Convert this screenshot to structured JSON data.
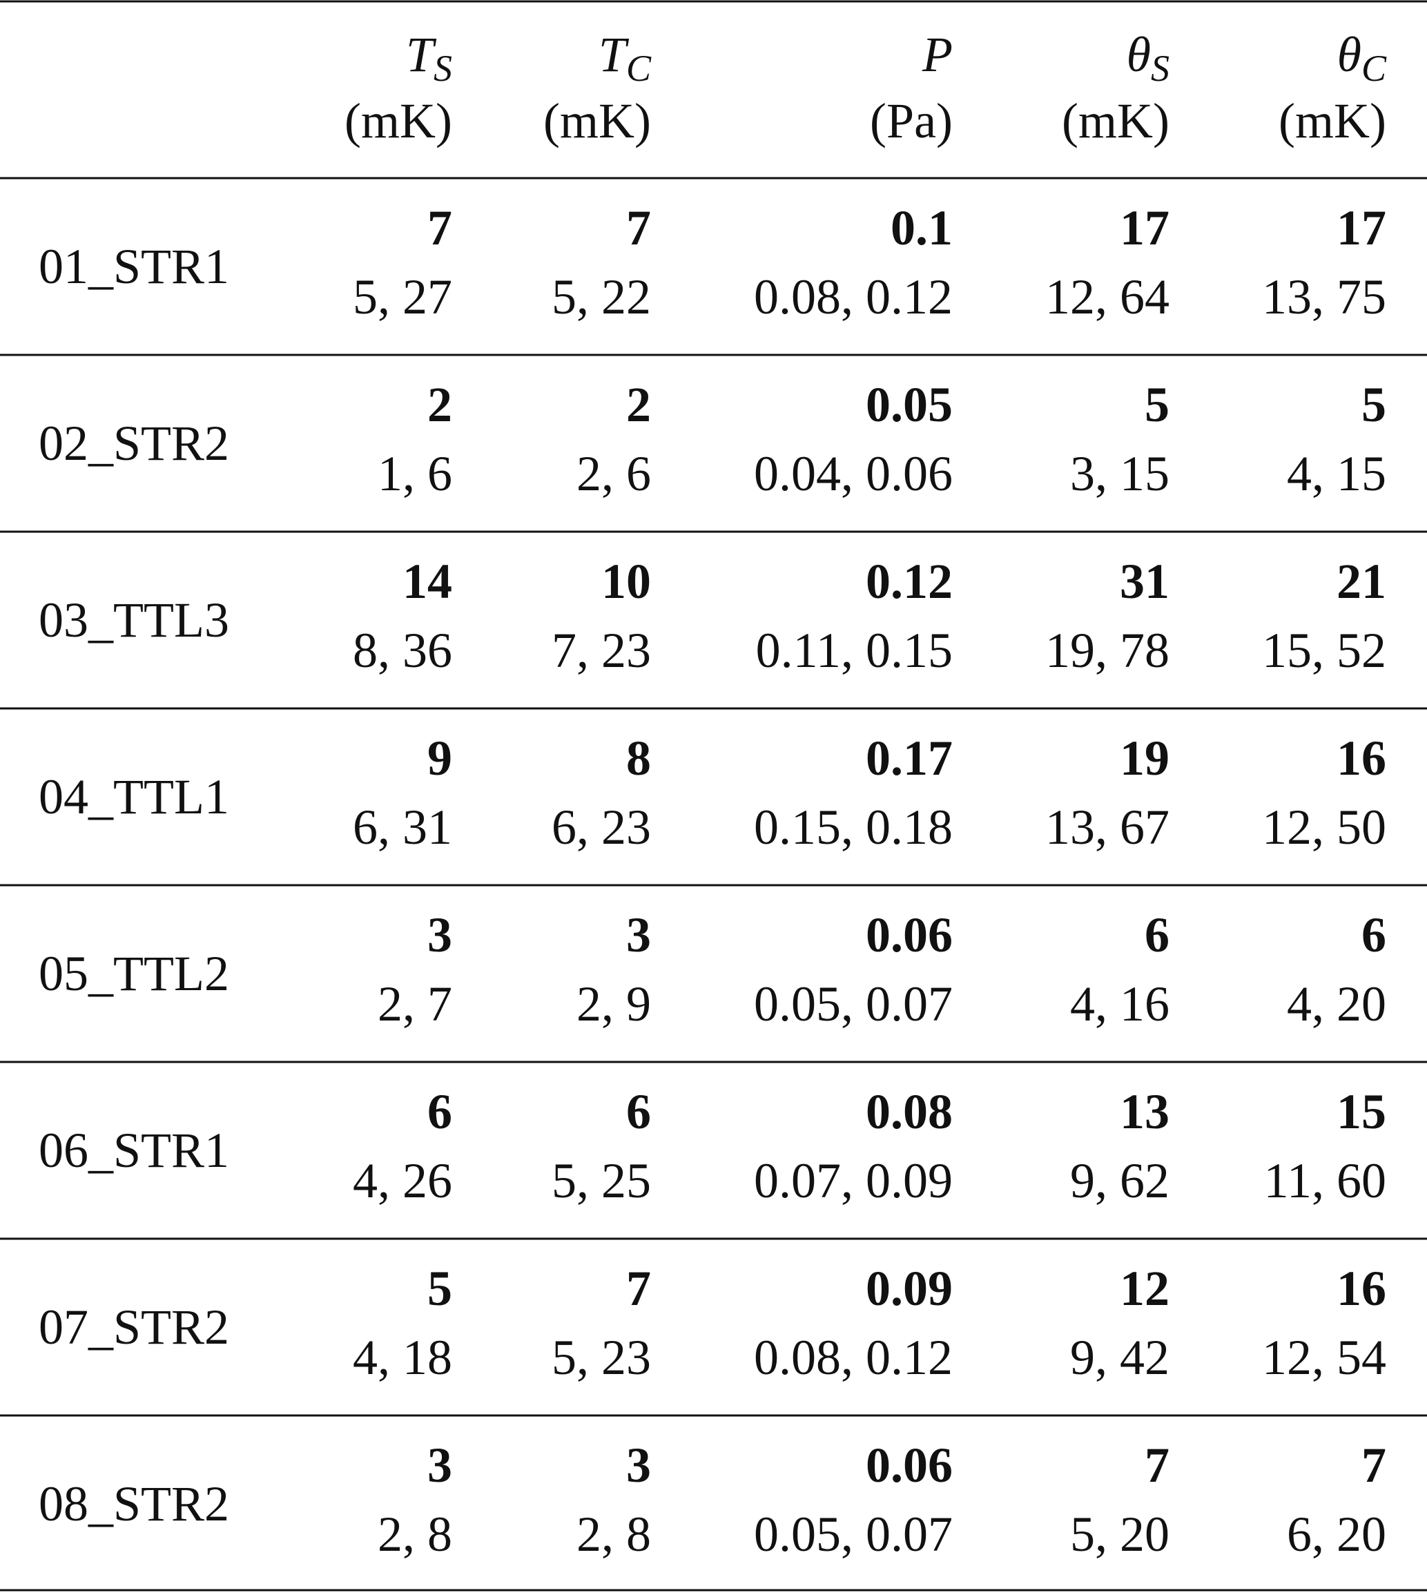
{
  "table": {
    "columns": [
      {
        "symbol": "T",
        "subscript": "S",
        "unit": "(mK)"
      },
      {
        "symbol": "T",
        "subscript": "C",
        "unit": "(mK)"
      },
      {
        "symbol": "P",
        "unit": "(Pa)"
      },
      {
        "symbol": "θ",
        "subscript": "S",
        "unit": "(mK)"
      },
      {
        "symbol": "θ",
        "subscript": "C",
        "unit": "(mK)"
      }
    ],
    "rows": [
      {
        "label": "01_STR1",
        "cells": [
          {
            "value": "7",
            "interval": "5, 27"
          },
          {
            "value": "7",
            "interval": "5, 22"
          },
          {
            "value": "0.1",
            "interval": "0.08, 0.12"
          },
          {
            "value": "17",
            "interval": "12, 64"
          },
          {
            "value": "17",
            "interval": "13, 75"
          }
        ]
      },
      {
        "label": "02_STR2",
        "cells": [
          {
            "value": "2",
            "interval": "1, 6"
          },
          {
            "value": "2",
            "interval": "2, 6"
          },
          {
            "value": "0.05",
            "interval": "0.04, 0.06"
          },
          {
            "value": "5",
            "interval": "3, 15"
          },
          {
            "value": "5",
            "interval": "4, 15"
          }
        ]
      },
      {
        "label": "03_TTL3",
        "cells": [
          {
            "value": "14",
            "interval": "8, 36"
          },
          {
            "value": "10",
            "interval": "7, 23"
          },
          {
            "value": "0.12",
            "interval": "0.11, 0.15"
          },
          {
            "value": "31",
            "interval": "19, 78"
          },
          {
            "value": "21",
            "interval": "15, 52"
          }
        ]
      },
      {
        "label": "04_TTL1",
        "cells": [
          {
            "value": "9",
            "interval": "6, 31"
          },
          {
            "value": "8",
            "interval": "6, 23"
          },
          {
            "value": "0.17",
            "interval": "0.15, 0.18"
          },
          {
            "value": "19",
            "interval": "13, 67"
          },
          {
            "value": "16",
            "interval": "12, 50"
          }
        ]
      },
      {
        "label": "05_TTL2",
        "cells": [
          {
            "value": "3",
            "interval": "2, 7"
          },
          {
            "value": "3",
            "interval": "2, 9"
          },
          {
            "value": "0.06",
            "interval": "0.05, 0.07"
          },
          {
            "value": "6",
            "interval": "4, 16"
          },
          {
            "value": "6",
            "interval": "4, 20"
          }
        ]
      },
      {
        "label": "06_STR1",
        "cells": [
          {
            "value": "6",
            "interval": "4, 26"
          },
          {
            "value": "6",
            "interval": "5, 25"
          },
          {
            "value": "0.08",
            "interval": "0.07, 0.09"
          },
          {
            "value": "13",
            "interval": "9, 62"
          },
          {
            "value": "15",
            "interval": "11, 60"
          }
        ]
      },
      {
        "label": "07_STR2",
        "cells": [
          {
            "value": "5",
            "interval": "4, 18"
          },
          {
            "value": "7",
            "interval": "5, 23"
          },
          {
            "value": "0.09",
            "interval": "0.08, 0.12"
          },
          {
            "value": "12",
            "interval": "9, 42"
          },
          {
            "value": "16",
            "interval": "12, 54"
          }
        ]
      },
      {
        "label": "08_STR2",
        "cells": [
          {
            "value": "3",
            "interval": "2, 8"
          },
          {
            "value": "3",
            "interval": "2, 8"
          },
          {
            "value": "0.06",
            "interval": "0.05, 0.07"
          },
          {
            "value": "7",
            "interval": "5, 20"
          },
          {
            "value": "7",
            "interval": "6, 20"
          }
        ]
      }
    ]
  }
}
